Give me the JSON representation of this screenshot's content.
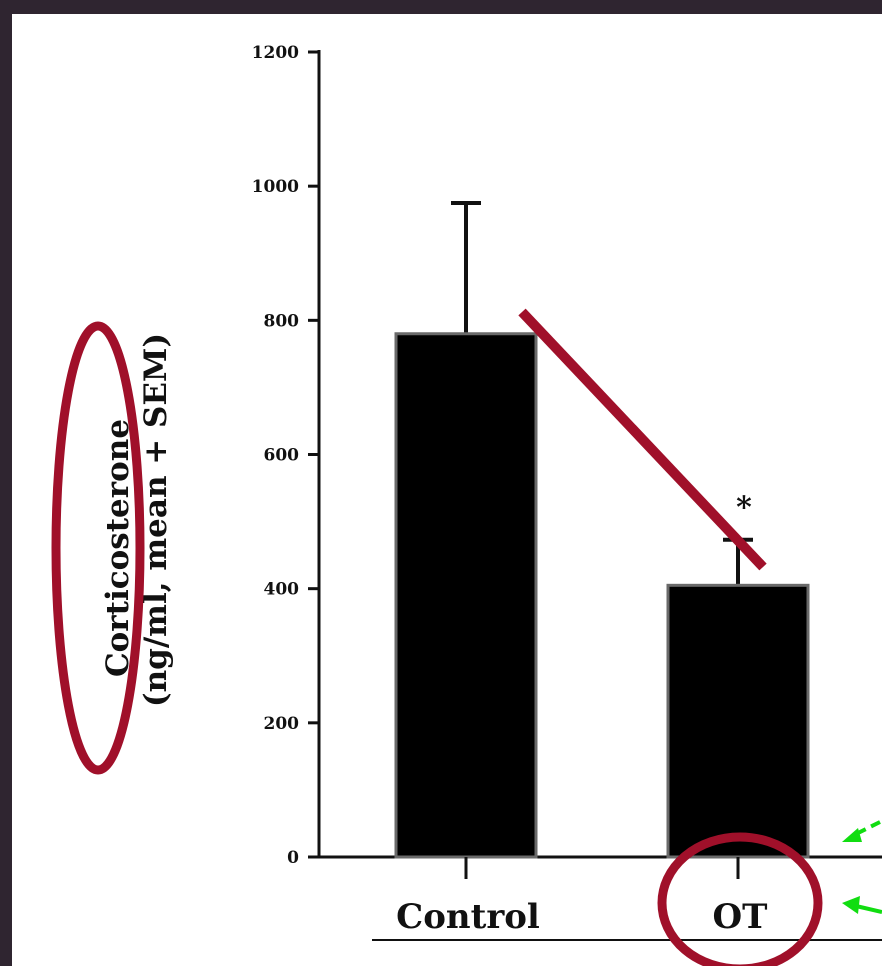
{
  "chart_data": {
    "type": "bar",
    "categories": [
      "Control",
      "OT"
    ],
    "values": [
      780,
      405
    ],
    "errors": [
      195,
      68
    ],
    "annotations": [
      "",
      "*"
    ],
    "ylabel_line1": "Corticosterone",
    "ylabel_line2": "(ng/ml, mean + SEM)",
    "yticks": [
      "0",
      "200",
      "400",
      "600",
      "800",
      "1000",
      "1200"
    ],
    "ylim": [
      0,
      1200
    ],
    "title": "",
    "xlabel": "",
    "bar_color": "#000000",
    "grid": false
  },
  "overlay": {
    "highlight_color": "#a0102a",
    "arrow_color": "#11dd11"
  }
}
